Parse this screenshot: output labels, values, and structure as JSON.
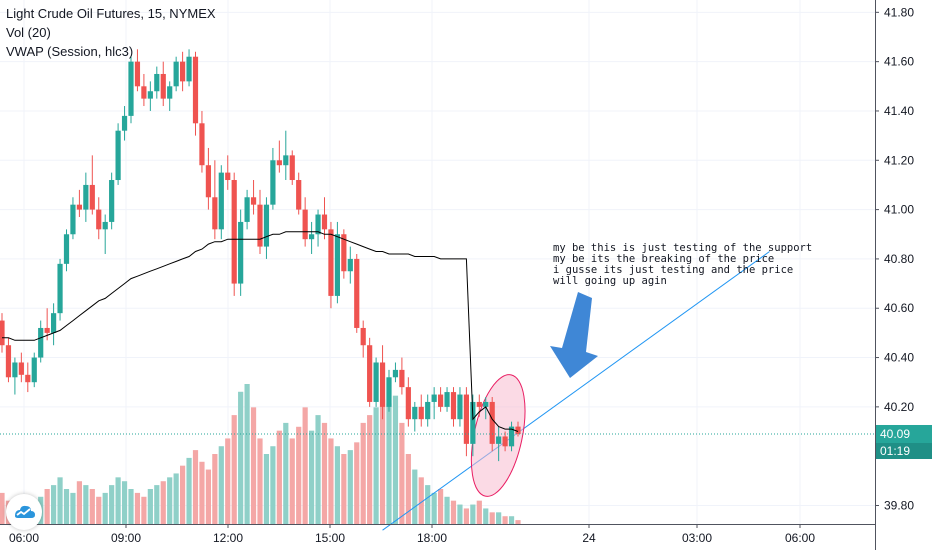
{
  "legend": {
    "title": "Light Crude Oil Futures, 15, NYMEX",
    "vol": "Vol (20)",
    "vwap": "VWAP (Session, hlc3)"
  },
  "annotation": {
    "lines": [
      "my be this is just testing of the support",
      "my be its the breaking of the price",
      "i gusse its just testing and the price",
      "will going up agin"
    ]
  },
  "price_badge": {
    "value": "40.09",
    "countdown": "01:19"
  },
  "colors": {
    "up": "#26a69a",
    "down": "#ef5350",
    "vol_up": "#8fd0c8",
    "vol_down": "#f4a7a6",
    "vwap": "#000000",
    "trendline": "#2196f3",
    "arrow": "#3f87d6",
    "ellipse_fill": "#f8bbd0",
    "ellipse_stroke": "#e91e63",
    "price_line": "#26a69a"
  },
  "icons": {
    "logo": "tradingview-cloud-icon"
  },
  "chart_data": {
    "type": "candlestick",
    "title": "Light Crude Oil Futures, 15, NYMEX",
    "y_axis": {
      "ticks": [
        "41.80",
        "41.60",
        "41.40",
        "41.20",
        "41.00",
        "40.80",
        "40.60",
        "40.40",
        "40.20",
        "39.80"
      ],
      "ylim": [
        39.725,
        41.85
      ],
      "position": "right"
    },
    "x_axis": {
      "ticks": [
        "06:00",
        "09:00",
        "12:00",
        "15:00",
        "18:00",
        "24",
        "03:00",
        "06:00"
      ]
    },
    "last_price": 40.09,
    "candles": [
      {
        "o": 40.55,
        "h": 40.58,
        "l": 40.42,
        "c": 40.45
      },
      {
        "o": 40.45,
        "h": 40.48,
        "l": 40.3,
        "c": 40.32
      },
      {
        "o": 40.32,
        "h": 40.4,
        "l": 40.25,
        "c": 40.38
      },
      {
        "o": 40.38,
        "h": 40.42,
        "l": 40.3,
        "c": 40.33
      },
      {
        "o": 40.33,
        "h": 40.38,
        "l": 40.26,
        "c": 40.3
      },
      {
        "o": 40.3,
        "h": 40.42,
        "l": 40.28,
        "c": 40.4
      },
      {
        "o": 40.4,
        "h": 40.55,
        "l": 40.38,
        "c": 40.52
      },
      {
        "o": 40.52,
        "h": 40.6,
        "l": 40.47,
        "c": 40.5
      },
      {
        "o": 40.5,
        "h": 40.62,
        "l": 40.45,
        "c": 40.58
      },
      {
        "o": 40.58,
        "h": 40.8,
        "l": 40.55,
        "c": 40.78
      },
      {
        "o": 40.78,
        "h": 40.92,
        "l": 40.75,
        "c": 40.9
      },
      {
        "o": 40.9,
        "h": 41.05,
        "l": 40.88,
        "c": 41.02
      },
      {
        "o": 41.02,
        "h": 41.08,
        "l": 40.97,
        "c": 41.0
      },
      {
        "o": 41.0,
        "h": 41.15,
        "l": 40.95,
        "c": 41.1
      },
      {
        "o": 41.1,
        "h": 41.22,
        "l": 40.98,
        "c": 41.0
      },
      {
        "o": 41.0,
        "h": 41.05,
        "l": 40.88,
        "c": 40.92
      },
      {
        "o": 40.92,
        "h": 40.98,
        "l": 40.82,
        "c": 40.95
      },
      {
        "o": 40.95,
        "h": 41.15,
        "l": 40.92,
        "c": 41.12
      },
      {
        "o": 41.12,
        "h": 41.35,
        "l": 41.1,
        "c": 41.32
      },
      {
        "o": 41.32,
        "h": 41.42,
        "l": 41.28,
        "c": 41.38
      },
      {
        "o": 41.38,
        "h": 41.62,
        "l": 41.35,
        "c": 41.6
      },
      {
        "o": 41.6,
        "h": 41.65,
        "l": 41.48,
        "c": 41.5
      },
      {
        "o": 41.5,
        "h": 41.55,
        "l": 41.42,
        "c": 41.45
      },
      {
        "o": 41.45,
        "h": 41.52,
        "l": 41.4,
        "c": 41.48
      },
      {
        "o": 41.48,
        "h": 41.58,
        "l": 41.45,
        "c": 41.55
      },
      {
        "o": 41.55,
        "h": 41.6,
        "l": 41.42,
        "c": 41.45
      },
      {
        "o": 41.45,
        "h": 41.52,
        "l": 41.4,
        "c": 41.5
      },
      {
        "o": 41.5,
        "h": 41.62,
        "l": 41.48,
        "c": 41.6
      },
      {
        "o": 41.6,
        "h": 41.64,
        "l": 41.48,
        "c": 41.52
      },
      {
        "o": 41.52,
        "h": 41.65,
        "l": 41.5,
        "c": 41.62
      },
      {
        "o": 41.62,
        "h": 41.64,
        "l": 41.3,
        "c": 41.35
      },
      {
        "o": 41.35,
        "h": 41.4,
        "l": 41.15,
        "c": 41.18
      },
      {
        "o": 41.18,
        "h": 41.25,
        "l": 41.0,
        "c": 41.05
      },
      {
        "o": 41.05,
        "h": 41.2,
        "l": 40.88,
        "c": 40.92
      },
      {
        "o": 40.92,
        "h": 41.18,
        "l": 40.88,
        "c": 41.15
      },
      {
        "o": 41.15,
        "h": 41.22,
        "l": 41.08,
        "c": 41.12
      },
      {
        "o": 41.12,
        "h": 41.15,
        "l": 40.65,
        "c": 40.7
      },
      {
        "o": 40.7,
        "h": 41.0,
        "l": 40.65,
        "c": 40.95
      },
      {
        "o": 40.95,
        "h": 41.08,
        "l": 40.92,
        "c": 41.05
      },
      {
        "o": 41.05,
        "h": 41.12,
        "l": 40.98,
        "c": 41.02
      },
      {
        "o": 41.02,
        "h": 41.08,
        "l": 40.82,
        "c": 40.85
      },
      {
        "o": 40.85,
        "h": 41.05,
        "l": 40.8,
        "c": 41.02
      },
      {
        "o": 41.02,
        "h": 41.25,
        "l": 41.0,
        "c": 41.2
      },
      {
        "o": 41.2,
        "h": 41.28,
        "l": 41.15,
        "c": 41.18
      },
      {
        "o": 41.18,
        "h": 41.32,
        "l": 41.12,
        "c": 41.22
      },
      {
        "o": 41.22,
        "h": 41.24,
        "l": 41.1,
        "c": 41.12
      },
      {
        "o": 41.12,
        "h": 41.15,
        "l": 40.98,
        "c": 41.0
      },
      {
        "o": 41.0,
        "h": 41.05,
        "l": 40.85,
        "c": 40.88
      },
      {
        "o": 40.88,
        "h": 40.95,
        "l": 40.82,
        "c": 40.9
      },
      {
        "o": 40.9,
        "h": 41.0,
        "l": 40.85,
        "c": 40.98
      },
      {
        "o": 40.98,
        "h": 41.05,
        "l": 40.88,
        "c": 40.92
      },
      {
        "o": 40.92,
        "h": 40.95,
        "l": 40.6,
        "c": 40.65
      },
      {
        "o": 40.65,
        "h": 40.95,
        "l": 40.62,
        "c": 40.9
      },
      {
        "o": 40.9,
        "h": 40.92,
        "l": 40.72,
        "c": 40.75
      },
      {
        "o": 40.75,
        "h": 40.85,
        "l": 40.7,
        "c": 40.8
      },
      {
        "o": 40.8,
        "h": 40.82,
        "l": 40.5,
        "c": 40.52
      },
      {
        "o": 40.52,
        "h": 40.55,
        "l": 40.4,
        "c": 40.45
      },
      {
        "o": 40.45,
        "h": 40.48,
        "l": 40.2,
        "c": 40.22
      },
      {
        "o": 40.22,
        "h": 40.4,
        "l": 40.2,
        "c": 40.38
      },
      {
        "o": 40.38,
        "h": 40.45,
        "l": 40.15,
        "c": 40.2
      },
      {
        "o": 40.2,
        "h": 40.35,
        "l": 40.18,
        "c": 40.32
      },
      {
        "o": 40.32,
        "h": 40.38,
        "l": 40.3,
        "c": 40.35
      },
      {
        "o": 40.35,
        "h": 40.4,
        "l": 40.25,
        "c": 40.28
      },
      {
        "o": 40.28,
        "h": 40.32,
        "l": 40.12,
        "c": 40.15
      },
      {
        "o": 40.15,
        "h": 40.22,
        "l": 40.1,
        "c": 40.2
      },
      {
        "o": 40.2,
        "h": 40.25,
        "l": 40.12,
        "c": 40.15
      },
      {
        "o": 40.15,
        "h": 40.25,
        "l": 40.12,
        "c": 40.22
      },
      {
        "o": 40.22,
        "h": 40.28,
        "l": 40.15,
        "c": 40.25
      },
      {
        "o": 40.25,
        "h": 40.28,
        "l": 40.18,
        "c": 40.2
      },
      {
        "o": 40.2,
        "h": 40.28,
        "l": 40.18,
        "c": 40.26
      },
      {
        "o": 40.26,
        "h": 40.28,
        "l": 40.12,
        "c": 40.15
      },
      {
        "o": 40.15,
        "h": 40.28,
        "l": 40.12,
        "c": 40.25
      },
      {
        "o": 40.25,
        "h": 40.28,
        "l": 40.0,
        "c": 40.05
      },
      {
        "o": 40.05,
        "h": 40.25,
        "l": 40.0,
        "c": 40.22
      },
      {
        "o": 40.22,
        "h": 40.25,
        "l": 40.16,
        "c": 40.2
      },
      {
        "o": 40.2,
        "h": 40.24,
        "l": 40.15,
        "c": 40.22
      },
      {
        "o": 40.22,
        "h": 40.24,
        "l": 40.02,
        "c": 40.05
      },
      {
        "o": 40.05,
        "h": 40.12,
        "l": 39.98,
        "c": 40.08
      },
      {
        "o": 40.08,
        "h": 40.1,
        "l": 40.02,
        "c": 40.04
      },
      {
        "o": 40.04,
        "h": 40.14,
        "l": 40.02,
        "c": 40.12
      },
      {
        "o": 40.12,
        "h": 40.14,
        "l": 40.08,
        "c": 40.09
      }
    ],
    "volume": [
      8,
      6,
      5,
      4,
      6,
      5,
      7,
      9,
      10,
      12,
      9,
      8,
      11,
      10,
      9,
      7,
      8,
      10,
      12,
      11,
      9,
      8,
      7,
      9,
      10,
      11,
      12,
      13,
      15,
      17,
      19,
      16,
      14,
      18,
      20,
      22,
      28,
      34,
      36,
      30,
      22,
      18,
      20,
      24,
      26,
      22,
      25,
      30,
      24,
      28,
      26,
      22,
      20,
      18,
      19,
      21,
      26,
      28,
      30,
      32,
      31,
      33,
      26,
      18,
      14,
      12,
      10,
      8,
      9,
      7,
      6,
      5,
      4,
      5,
      6,
      4,
      3,
      3,
      2,
      2,
      1
    ],
    "vwap": [
      40.48,
      40.48,
      40.47,
      40.47,
      40.47,
      40.47,
      40.48,
      40.49,
      40.5,
      40.51,
      40.53,
      40.55,
      40.57,
      40.59,
      40.61,
      40.63,
      40.64,
      40.66,
      40.68,
      40.7,
      40.72,
      40.73,
      40.74,
      40.75,
      40.76,
      40.77,
      40.78,
      40.79,
      40.8,
      40.81,
      40.83,
      40.84,
      40.86,
      40.87,
      40.87,
      40.88,
      40.88,
      40.88,
      40.88,
      40.88,
      40.88,
      40.89,
      40.9,
      40.9,
      40.91,
      40.91,
      40.91,
      40.91,
      40.91,
      40.91,
      40.9,
      40.9,
      40.89,
      40.88,
      40.87,
      40.86,
      40.85,
      40.84,
      40.83,
      40.83,
      40.82,
      40.82,
      40.82,
      40.82,
      40.81,
      40.81,
      40.81,
      40.81,
      40.8,
      40.8,
      40.8,
      40.8,
      40.8,
      40.15,
      40.18,
      40.2,
      40.15,
      40.12,
      40.11,
      40.11,
      40.1
    ],
    "trendline": {
      "from": {
        "t": 59,
        "p": 39.7
      },
      "to": {
        "t": 119,
        "p": 40.83
      }
    },
    "highlight_ellipse": {
      "t": 76,
      "p": 40.1
    }
  }
}
